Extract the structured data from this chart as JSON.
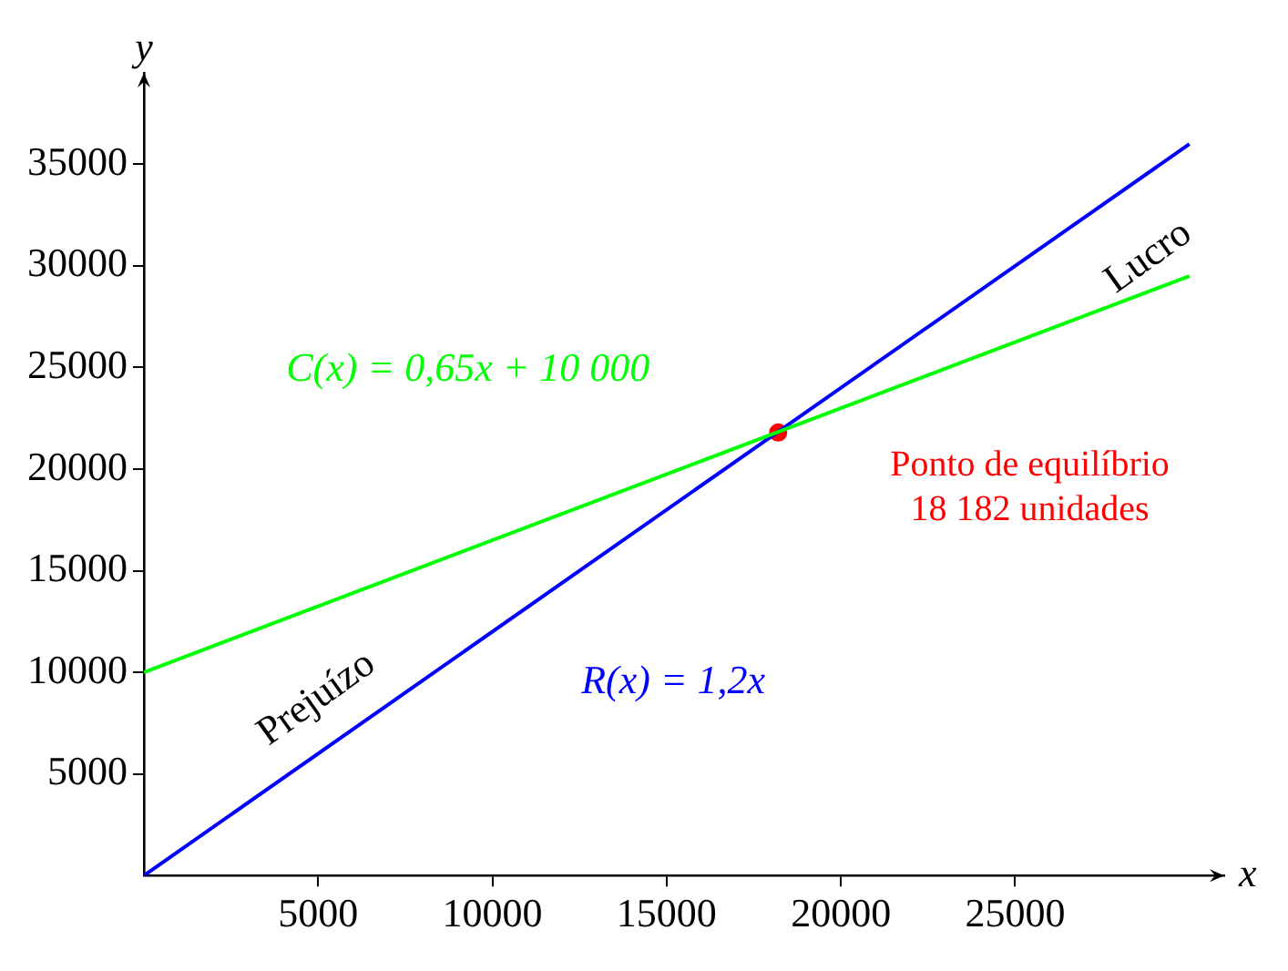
{
  "chart_data": {
    "type": "line",
    "xlabel": "x",
    "ylabel": "y",
    "xlim": [
      0,
      31000
    ],
    "ylim": [
      0,
      39500
    ],
    "xticks": [
      5000,
      10000,
      15000,
      20000,
      25000
    ],
    "yticks": [
      5000,
      10000,
      15000,
      20000,
      25000,
      30000,
      35000
    ],
    "grid": false,
    "legend": false,
    "line_style": "solid",
    "series": [
      {
        "type": "line",
        "name": "C(x) = 0,65x + 10 000",
        "color": "#00ff00",
        "x": [
          0,
          30000
        ],
        "values": [
          10000,
          29500
        ]
      },
      {
        "type": "line",
        "name": "R(x) = 1,2x",
        "color": "#0000ff",
        "x": [
          0,
          30000
        ],
        "values": [
          0,
          36000
        ]
      },
      {
        "type": "scatter",
        "color": "#ff0000",
        "marker": "circle",
        "x": [
          18200
        ],
        "values": [
          21800
        ]
      }
    ],
    "annotations": [
      "Ponto de equilíbrio",
      "18 182 unidades",
      "Prejuízo",
      "Lucro"
    ]
  }
}
